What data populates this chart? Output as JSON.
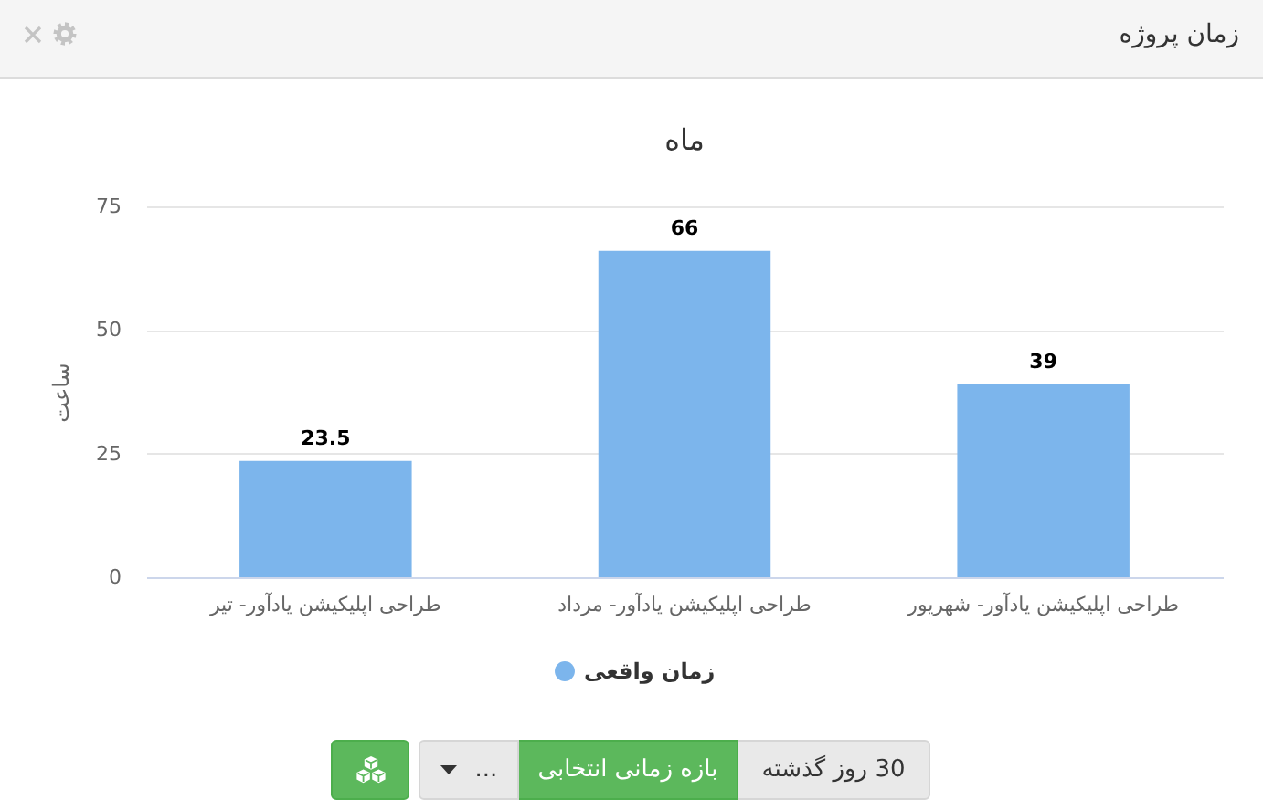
{
  "chart_data": {
    "type": "bar",
    "title": "زمان پروژه",
    "subtitle": "ماه",
    "ylabel": "ساعت",
    "categories": [
      "طراحی اپلیکیشن یادآور- تیر",
      "طراحی اپلیکیشن یادآور- مرداد",
      "طراحی اپلیکیشن یادآور- شهریور"
    ],
    "series": [
      {
        "name": "زمان واقعی",
        "color": "#7cb5ec",
        "values": [
          23.5,
          66,
          39
        ]
      }
    ],
    "ylim": [
      0,
      75
    ],
    "yticks": [
      0,
      25,
      50,
      75
    ],
    "grid": "y",
    "legend": "bottom",
    "data_labels": true,
    "annotations": [
      "30 روز گذشته",
      "بازه زمانی انتخابی",
      "..."
    ]
  }
}
